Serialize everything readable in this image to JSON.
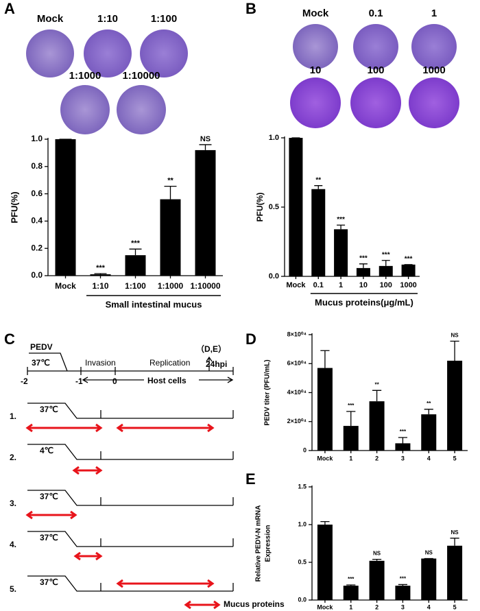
{
  "panel_labels": [
    "A",
    "B",
    "C",
    "D",
    "E"
  ],
  "plaques": {
    "a": [
      "Mock",
      "1:10",
      "1:100",
      "1:1000",
      "1:10000"
    ],
    "b": [
      "Mock",
      "0.1",
      "1",
      "10",
      "100",
      "1000"
    ]
  },
  "diagram": {
    "pedv": "PEDV",
    "temp": "37℃",
    "invasion": "Invasion",
    "replication": "Replication",
    "sampling": "（D,E）",
    "times": [
      "-2",
      "-1",
      "0",
      "24hpi"
    ],
    "host_cells": "Host cells",
    "rows": [
      {
        "label": "1.",
        "temp": "37℃"
      },
      {
        "label": "2.",
        "temp": "4℃"
      },
      {
        "label": "3.",
        "temp": "37℃"
      },
      {
        "label": "4.",
        "temp": "37℃"
      },
      {
        "label": "5.",
        "temp": "37℃"
      }
    ],
    "legend": "Mucus proteins"
  },
  "chart_data": [
    {
      "type": "bar",
      "ylabel": [
        "PFU(%)"
      ],
      "color": "#000000",
      "categories": [
        "Mock",
        "1:10",
        "1:100",
        "1:1000",
        "1:10000"
      ],
      "values": [
        1.0,
        0.01,
        0.15,
        0.56,
        0.92
      ],
      "errors": [
        0,
        0.005,
        0.045,
        0.095,
        0.04
      ],
      "annotations": [
        null,
        "***",
        "***",
        "**",
        "NS"
      ],
      "group_label": "Small intestinal mucus",
      "ylim": [
        0,
        1.0
      ],
      "yticks": [
        {
          "value": 0,
          "label": "0.0"
        },
        0.2,
        0.4,
        0.6,
        0.8,
        {
          "value": 1.0,
          "label": "1.0"
        }
      ]
    },
    {
      "type": "bar",
      "ylabel": [
        "PFU(%)"
      ],
      "color": "#000000",
      "categories": [
        "Mock",
        "0.1",
        "1",
        "10",
        "100",
        "1000"
      ],
      "values": [
        1.0,
        0.63,
        0.34,
        0.06,
        0.075,
        0.085
      ],
      "errors": [
        0,
        0.025,
        0.03,
        0.03,
        0.04,
        0
      ],
      "annotations": [
        null,
        "**",
        "***",
        "***",
        "***",
        "***"
      ],
      "group_label": "Mucus proteins(μg/mL)",
      "ylim": [
        0,
        1.0
      ],
      "yticks": [
        {
          "value": 0,
          "label": "0.0"
        },
        0.5,
        {
          "value": 1.0,
          "label": "1.0"
        }
      ]
    },
    {
      "type": "bar",
      "ylabel": [
        "PEDV titer (PFU/mL)"
      ],
      "color": "#000000",
      "categories": [
        "Mock",
        "1",
        "2",
        "3",
        "4",
        "5"
      ],
      "values": [
        57000,
        17000,
        34000,
        5000,
        25000,
        62000
      ],
      "errors": [
        12000,
        10000,
        7500,
        4000,
        3500,
        13500
      ],
      "annotations": [
        null,
        "***",
        "**",
        "***",
        "**",
        "NS"
      ],
      "ylim": [
        0,
        80000
      ],
      "yticks": [
        0,
        {
          "value": 20000,
          "label": "2×10⁰⁴"
        },
        {
          "value": 40000,
          "label": "4×10⁰⁴"
        },
        {
          "value": 60000,
          "label": "6×10⁰⁴"
        },
        {
          "value": 80000,
          "label": "8×10⁰⁴"
        }
      ]
    },
    {
      "type": "bar",
      "ylabel": [
        "Relative PEDV-N mRNA",
        "Expression"
      ],
      "color": "#000000",
      "categories": [
        "Mock",
        "1",
        "2",
        "3",
        "4",
        "5"
      ],
      "values": [
        1.0,
        0.19,
        0.52,
        0.19,
        0.55,
        0.72
      ],
      "errors": [
        0.04,
        0.01,
        0.02,
        0.015,
        0,
        0.1
      ],
      "annotations": [
        null,
        "***",
        "NS",
        "***",
        "NS",
        "NS"
      ],
      "ylim": [
        0,
        1.5
      ],
      "yticks": [
        {
          "value": 0,
          "label": "0.0"
        },
        0.5,
        {
          "value": 1.0,
          "label": "1.0"
        },
        1.5
      ]
    }
  ]
}
